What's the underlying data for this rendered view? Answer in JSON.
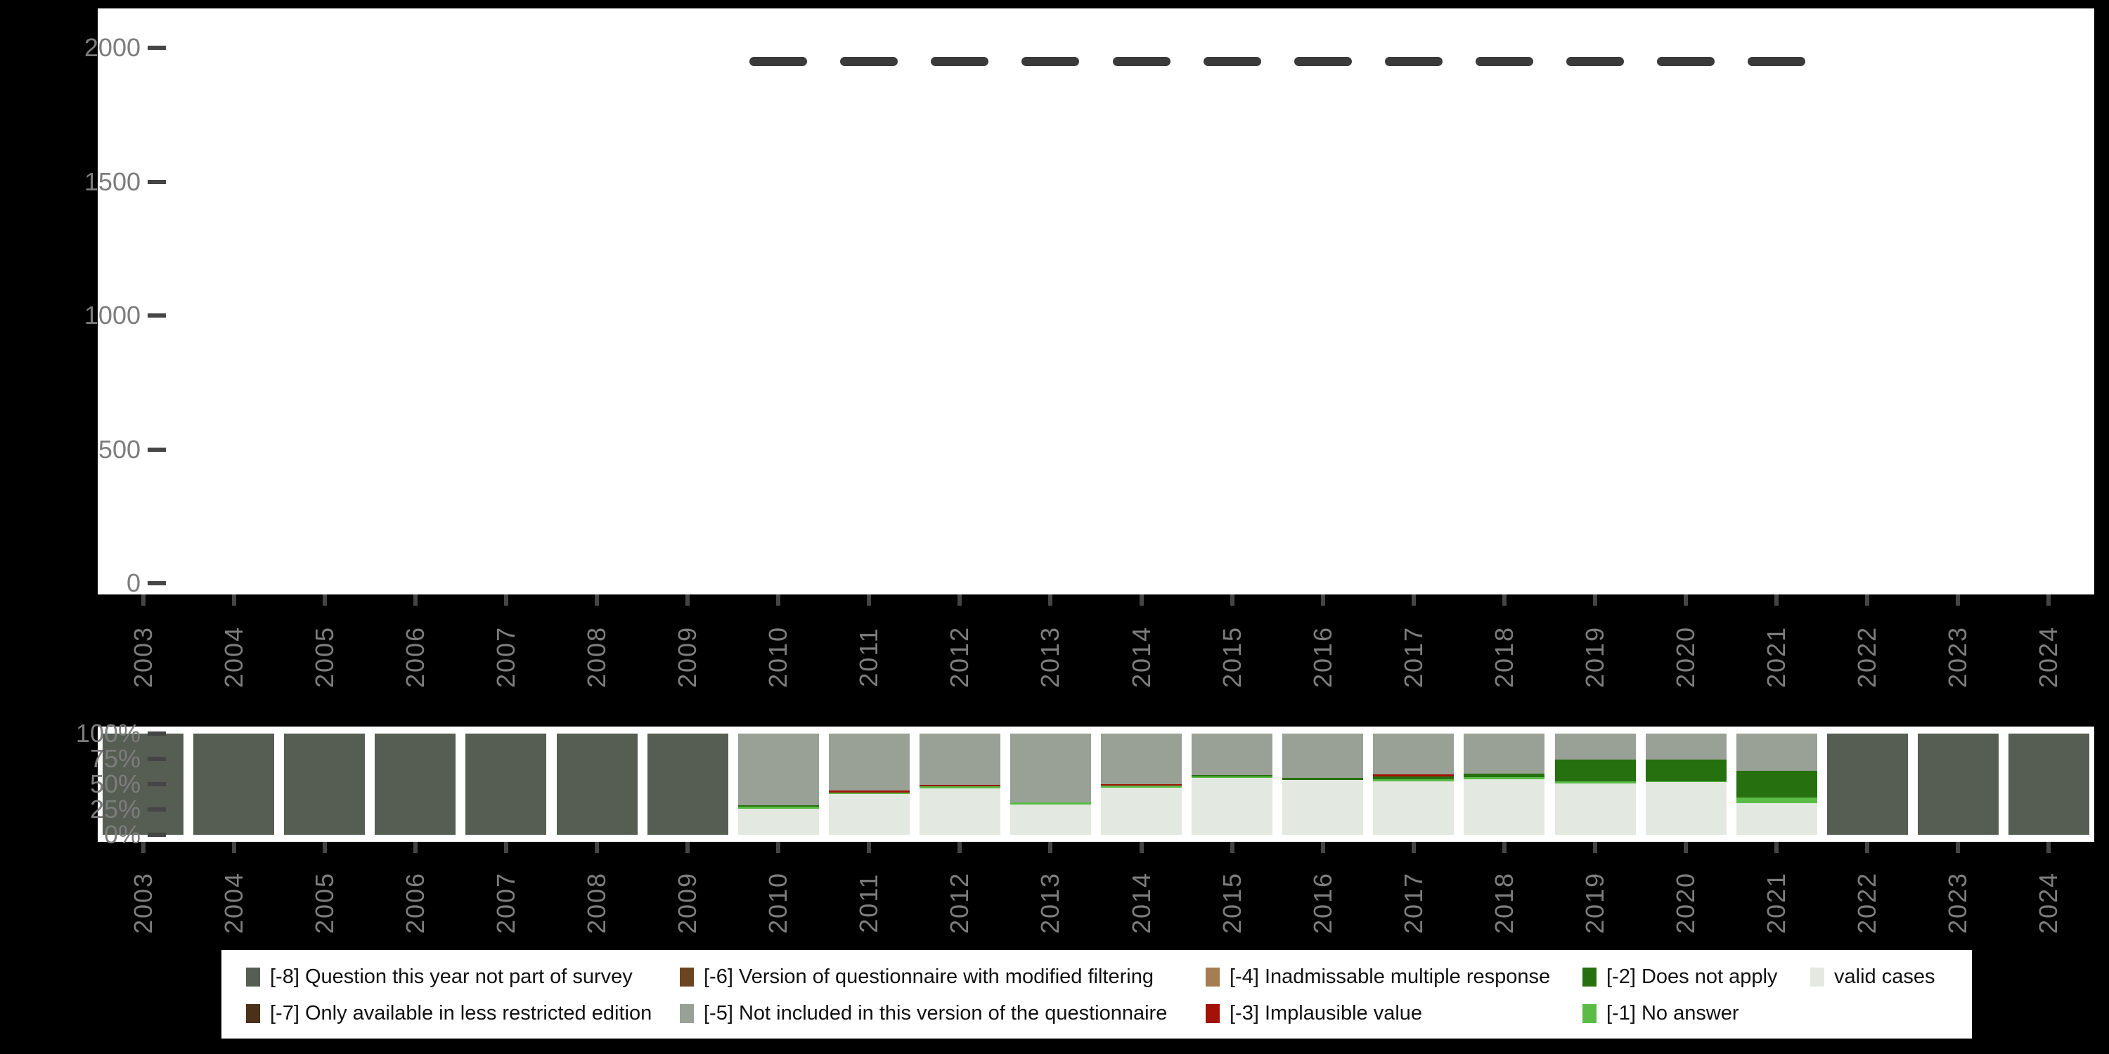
{
  "figure": {
    "background": "#000000",
    "panel_background": "#ffffff",
    "axis_tick_color": "#454545",
    "axis_text_color": "#7d7d7d",
    "dash_marker_color": "#3a3a3a"
  },
  "legend": {
    "items": [
      {
        "code": "-8",
        "label": "[-8] Question this year not part of survey",
        "color": "#565d53",
        "row": 0,
        "col": 0
      },
      {
        "code": "-7",
        "label": "[-7] Only available in less restricted edition",
        "color": "#4a3118",
        "row": 1,
        "col": 0
      },
      {
        "code": "-6",
        "label": "[-6] Version of questionnaire with modified filtering",
        "color": "#6b4520",
        "row": 0,
        "col": 1
      },
      {
        "code": "-5",
        "label": "[-5] Not included in this version of the questionnaire",
        "color": "#99a096",
        "row": 1,
        "col": 1
      },
      {
        "code": "-4",
        "label": "[-4] Inadmissable multiple response",
        "color": "#a67c52",
        "row": 0,
        "col": 2
      },
      {
        "code": "-3",
        "label": "[-3] Implausible value",
        "color": "#a31208",
        "row": 1,
        "col": 2
      },
      {
        "code": "-2",
        "label": "[-2] Does not apply",
        "color": "#26700f",
        "row": 0,
        "col": 3
      },
      {
        "code": "-1",
        "label": "[-1] No answer",
        "color": "#5abb47",
        "row": 1,
        "col": 3
      },
      {
        "code": "valid",
        "label": "valid cases",
        "color": "#e3e8e1",
        "row": 0,
        "col": 4
      }
    ]
  },
  "chart_data": [
    {
      "type": "line",
      "subtype": "dash-markers",
      "categories": [
        "2003",
        "2004",
        "2005",
        "2006",
        "2007",
        "2008",
        "2009",
        "2010",
        "2011",
        "2012",
        "2013",
        "2014",
        "2015",
        "2016",
        "2017",
        "2018",
        "2019",
        "2020",
        "2021",
        "2022",
        "2023",
        "2024"
      ],
      "values": [
        null,
        null,
        null,
        null,
        null,
        null,
        null,
        1950,
        1950,
        1950,
        1950,
        1950,
        1950,
        1950,
        1950,
        1950,
        1950,
        1950,
        1950,
        null,
        null,
        null
      ],
      "ylim": [
        0,
        2000
      ],
      "yticks": [
        0,
        500,
        1000,
        1500,
        2000
      ],
      "ytick_labels": [
        "0",
        "500",
        "1000",
        "1500",
        "2000"
      ],
      "grid": false,
      "legend_position": "none"
    },
    {
      "type": "bar",
      "subtype": "stacked-percent",
      "categories": [
        "2003",
        "2004",
        "2005",
        "2006",
        "2007",
        "2008",
        "2009",
        "2010",
        "2011",
        "2012",
        "2013",
        "2014",
        "2015",
        "2016",
        "2017",
        "2018",
        "2019",
        "2020",
        "2021",
        "2022",
        "2023",
        "2024"
      ],
      "stack_order_top_to_bottom": [
        "-8",
        "-7",
        "-6",
        "-5",
        "-4",
        "-3",
        "-2",
        "-1",
        "valid"
      ],
      "series": [
        {
          "code": "-8",
          "values": [
            100,
            100,
            100,
            100,
            100,
            100,
            100,
            0,
            0,
            0,
            0,
            0,
            0,
            0,
            0,
            0,
            0,
            0,
            0,
            100,
            100,
            100
          ]
        },
        {
          "code": "-7",
          "values": [
            0,
            0,
            0,
            0,
            0,
            0,
            0,
            0,
            0,
            0,
            0,
            0,
            0,
            0,
            0,
            0,
            0,
            0,
            0,
            0,
            0,
            0
          ]
        },
        {
          "code": "-6",
          "values": [
            0,
            0,
            0,
            0,
            0,
            0,
            0,
            0,
            0,
            0,
            0,
            0,
            0,
            0,
            0,
            0,
            0,
            0,
            0,
            0,
            0,
            0
          ]
        },
        {
          "code": "-5",
          "values": [
            0,
            0,
            0,
            0,
            0,
            0,
            0,
            70.5,
            56,
            50.5,
            67.8,
            49.8,
            41.3,
            44,
            40,
            39.5,
            25.4,
            25.4,
            37,
            0,
            0,
            0
          ]
        },
        {
          "code": "-4",
          "values": [
            0,
            0,
            0,
            0,
            0,
            0,
            0,
            0,
            0,
            0,
            0,
            0,
            0,
            0,
            0,
            0,
            0,
            0,
            0,
            0,
            0,
            0
          ]
        },
        {
          "code": "-3",
          "values": [
            0,
            0,
            0,
            0,
            0,
            0,
            0,
            0,
            2,
            1.7,
            0,
            1.7,
            0,
            0,
            2.7,
            0,
            0,
            0,
            0,
            0,
            0,
            0
          ]
        },
        {
          "code": "-2",
          "values": [
            0,
            0,
            0,
            0,
            0,
            0,
            0,
            1.5,
            0,
            0,
            0,
            0,
            1,
            1.6,
            2.3,
            3.8,
            21.6,
            21.6,
            26.5,
            0,
            0,
            0
          ]
        },
        {
          "code": "-1",
          "values": [
            0,
            0,
            0,
            0,
            0,
            0,
            0,
            2,
            1.7,
            2,
            2.2,
            2,
            1.2,
            0,
            1.9,
            2,
            2.2,
            1,
            5.4,
            0,
            0,
            0
          ]
        },
        {
          "code": "valid",
          "values": [
            0,
            0,
            0,
            0,
            0,
            0,
            0,
            26,
            40.3,
            45.8,
            30,
            46.5,
            56.5,
            54.4,
            53.1,
            54.7,
            50.8,
            52,
            31.1,
            0,
            0,
            0
          ]
        }
      ],
      "ylim": [
        0,
        100
      ],
      "yticks": [
        0,
        25,
        50,
        75,
        100
      ],
      "ytick_labels": [
        "0%",
        "25%",
        "50%",
        "75%",
        "100%"
      ],
      "grid": false,
      "legend_position": "bottom"
    }
  ]
}
